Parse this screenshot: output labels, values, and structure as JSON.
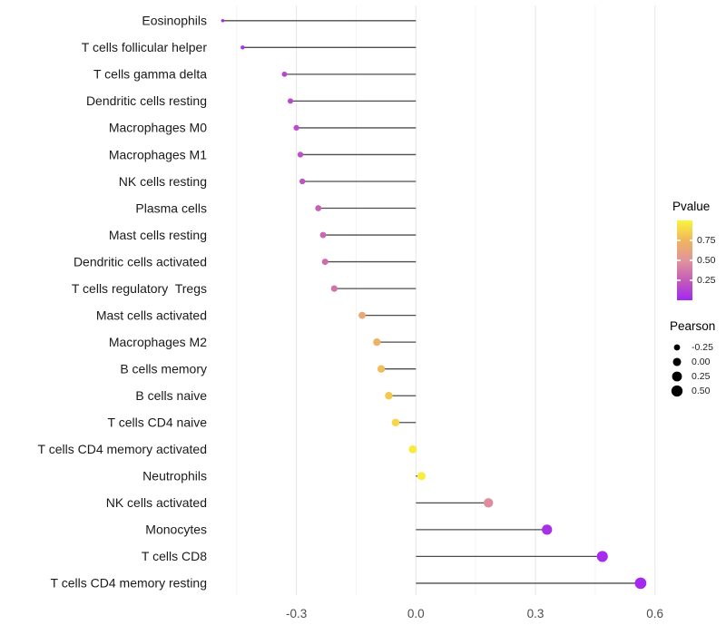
{
  "chart_data": {
    "type": "scatter",
    "subtype": "lollipop",
    "title": "",
    "xlabel": "",
    "ylabel": "",
    "xlim": [
      -0.5,
      0.63
    ],
    "x_ticks": [
      -0.3,
      0.0,
      0.3,
      0.6
    ],
    "x_tick_labels": [
      "-0.3",
      "0.0",
      "0.3",
      "0.6"
    ],
    "x_minor_ticks": [
      -0.45,
      -0.15,
      0.15,
      0.45
    ],
    "grid": "vertical gridlines only, light gray, white panel",
    "baseline_x": 0.0,
    "legend_position": "right",
    "points": [
      {
        "label": "Eosinophils",
        "pearson": -0.485,
        "pvalue": 0.02
      },
      {
        "label": "T cells follicular helper",
        "pearson": -0.435,
        "pvalue": 0.05
      },
      {
        "label": "T cells gamma delta",
        "pearson": -0.33,
        "pvalue": 0.15
      },
      {
        "label": "Dendritic cells resting",
        "pearson": -0.315,
        "pvalue": 0.16
      },
      {
        "label": "Macrophages M0",
        "pearson": -0.3,
        "pvalue": 0.17
      },
      {
        "label": "Macrophages M1",
        "pearson": -0.29,
        "pvalue": 0.2
      },
      {
        "label": "NK cells resting",
        "pearson": -0.285,
        "pvalue": 0.21
      },
      {
        "label": "Plasma cells",
        "pearson": -0.245,
        "pvalue": 0.27
      },
      {
        "label": "Mast cells resting",
        "pearson": -0.233,
        "pvalue": 0.3
      },
      {
        "label": "Dendritic cells activated",
        "pearson": -0.228,
        "pvalue": 0.32
      },
      {
        "label": "T cells regulatory  Tregs",
        "pearson": -0.205,
        "pvalue": 0.35
      },
      {
        "label": "Mast cells activated",
        "pearson": -0.135,
        "pvalue": 0.65
      },
      {
        "label": "Macrophages M2",
        "pearson": -0.098,
        "pvalue": 0.72
      },
      {
        "label": "B cells memory",
        "pearson": -0.087,
        "pvalue": 0.78
      },
      {
        "label": "B cells naive",
        "pearson": -0.068,
        "pvalue": 0.83
      },
      {
        "label": "T cells CD4 naive",
        "pearson": -0.051,
        "pvalue": 0.88
      },
      {
        "label": "T cells CD4 memory activated",
        "pearson": -0.008,
        "pvalue": 0.96
      },
      {
        "label": "Neutrophils",
        "pearson": 0.014,
        "pvalue": 0.97
      },
      {
        "label": "NK cells activated",
        "pearson": 0.182,
        "pvalue": 0.47
      },
      {
        "label": "Monocytes",
        "pearson": 0.329,
        "pvalue": 0.04
      },
      {
        "label": "T cells CD8",
        "pearson": 0.468,
        "pvalue": 0.02
      },
      {
        "label": "T cells CD4 memory resting",
        "pearson": 0.564,
        "pvalue": 0.01
      }
    ],
    "color_scale": {
      "variable": "pvalue",
      "domain": [
        0,
        1
      ],
      "stops": [
        "#a228f0",
        "#c55cb8",
        "#e1949b",
        "#f0b55e",
        "#faf53a"
      ]
    },
    "size_scale": {
      "variable": "pearson",
      "domain": [
        -0.5,
        0.58
      ],
      "radius_range_px": [
        1.6,
        6.4
      ]
    }
  },
  "legend": {
    "pvalue": {
      "title": "Pvalue",
      "tick_labels": [
        "0.75",
        "0.50",
        "0.25"
      ],
      "tick_values": [
        0.75,
        0.5,
        0.25
      ]
    },
    "pearson": {
      "title": "Pearson",
      "tick_labels": [
        "-0.25",
        "0.00",
        "0.25",
        "0.50"
      ],
      "tick_values": [
        -0.25,
        0.0,
        0.25,
        0.5
      ]
    }
  },
  "colors": {
    "background": "#ffffff",
    "stem": "#4d4d4d",
    "grid_major": "#e7e7e7",
    "grid_minor": "#f3f3f3",
    "axis_text": "#4d4d4d",
    "category_text": "#1a1a1a",
    "legend_title_text": "#000000",
    "legend_dot": "#000000"
  }
}
